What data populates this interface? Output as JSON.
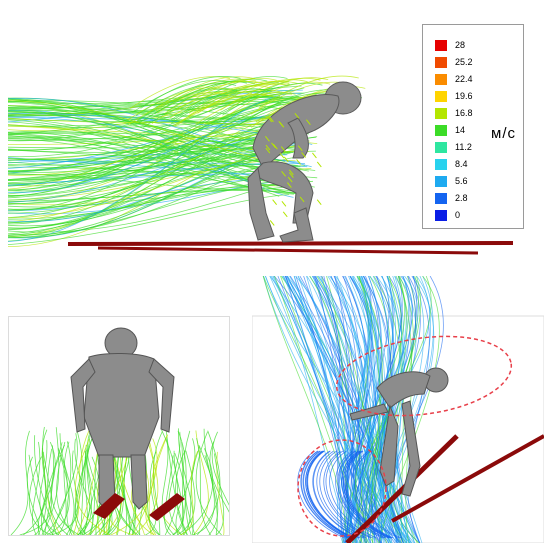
{
  "figure": {
    "legend": {
      "unit": "м/с",
      "entries": [
        {
          "label": "28",
          "color": "#e60000"
        },
        {
          "label": "25.2",
          "color": "#f04a00"
        },
        {
          "label": "22.4",
          "color": "#fa8c00"
        },
        {
          "label": "19.6",
          "color": "#ffd400"
        },
        {
          "label": "16.8",
          "color": "#b4e600"
        },
        {
          "label": "14",
          "color": "#3cdc28"
        },
        {
          "label": "11.2",
          "color": "#2ee6a0"
        },
        {
          "label": "8.4",
          "color": "#28d2ee"
        },
        {
          "label": "5.6",
          "color": "#1eaaf0"
        },
        {
          "label": "2.8",
          "color": "#1464f0"
        },
        {
          "label": "0",
          "color": "#0a1ee6"
        }
      ]
    },
    "colors": {
      "streamline_fast": "#3cdc28",
      "streamline_mid": "#b4e600",
      "streamline_slow": "#1eaaf0",
      "streamline_low": "#1464f0",
      "skier_body": "#8c8c8c",
      "skis": "#8b0a0a",
      "highlight_ellipse": "#e8404a"
    }
  }
}
